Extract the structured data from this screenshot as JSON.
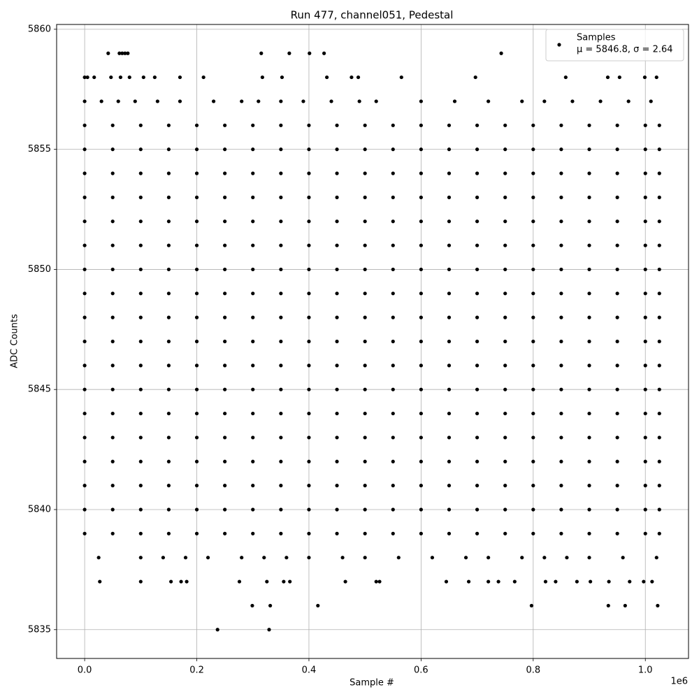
{
  "chart_data": {
    "type": "scatter",
    "title": "Run 477, channel051, Pedestal",
    "x_label": "Sample #",
    "y_label": "ADC Counts",
    "x_offset_label": "1e6",
    "xlim": [
      -50000,
      1077000
    ],
    "ylim": [
      5833.8,
      5860.2
    ],
    "xticks": [
      {
        "value": 0,
        "label": "0.0"
      },
      {
        "value": 200000,
        "label": "0.2"
      },
      {
        "value": 400000,
        "label": "0.4"
      },
      {
        "value": 600000,
        "label": "0.6"
      },
      {
        "value": 800000,
        "label": "0.8"
      },
      {
        "value": 1000000,
        "label": "1.0"
      }
    ],
    "yticks": [
      5835,
      5840,
      5845,
      5850,
      5855,
      5860
    ],
    "grid": true,
    "legend_position": "upper right",
    "series": [
      {
        "name": "Samples",
        "legend_note": "μ = 5846.8, σ = 2.64",
        "color": "#000000",
        "x": [
          0,
          50000,
          100000,
          150000,
          200000,
          250000,
          300000,
          350000,
          400000,
          450000,
          500000,
          550000,
          600000,
          650000,
          700000,
          750000,
          800000,
          850000,
          900000,
          950000,
          1000000,
          1025000,
          0,
          50000,
          100000,
          150000,
          200000,
          250000,
          300000,
          350000,
          400000,
          450000,
          500000,
          550000,
          600000,
          650000,
          700000,
          750000,
          800000,
          850000,
          900000,
          950000,
          1000000,
          1025000,
          0,
          50000,
          100000,
          150000,
          200000,
          250000,
          300000,
          350000,
          400000,
          450000,
          500000,
          550000,
          600000,
          650000,
          700000,
          750000,
          800000,
          850000,
          900000,
          950000,
          1000000,
          1025000,
          0,
          50000,
          100000,
          150000,
          200000,
          250000,
          300000,
          350000,
          400000,
          450000,
          500000,
          550000,
          600000,
          650000,
          700000,
          750000,
          800000,
          850000,
          900000,
          950000,
          1000000,
          1025000,
          0,
          50000,
          100000,
          150000,
          200000,
          250000,
          300000,
          350000,
          400000,
          450000,
          500000,
          550000,
          600000,
          650000,
          700000,
          750000,
          800000,
          850000,
          900000,
          950000,
          1000000,
          1025000,
          0,
          50000,
          100000,
          150000,
          200000,
          250000,
          300000,
          350000,
          400000,
          450000,
          500000,
          550000,
          600000,
          650000,
          700000,
          750000,
          800000,
          850000,
          900000,
          950000,
          1000000,
          1025000,
          0,
          50000,
          100000,
          150000,
          200000,
          250000,
          300000,
          350000,
          400000,
          450000,
          500000,
          550000,
          600000,
          650000,
          700000,
          750000,
          800000,
          850000,
          900000,
          950000,
          1000000,
          1025000,
          0,
          50000,
          100000,
          150000,
          200000,
          250000,
          300000,
          350000,
          400000,
          450000,
          500000,
          550000,
          600000,
          650000,
          700000,
          750000,
          800000,
          850000,
          900000,
          950000,
          1000000,
          1025000,
          0,
          50000,
          100000,
          150000,
          200000,
          250000,
          300000,
          350000,
          400000,
          450000,
          500000,
          550000,
          600000,
          650000,
          700000,
          750000,
          800000,
          850000,
          900000,
          950000,
          1000000,
          1025000,
          0,
          50000,
          100000,
          150000,
          200000,
          250000,
          300000,
          350000,
          400000,
          450000,
          500000,
          550000,
          600000,
          650000,
          700000,
          750000,
          800000,
          850000,
          900000,
          950000,
          1000000,
          1025000,
          0,
          50000,
          100000,
          150000,
          200000,
          250000,
          300000,
          350000,
          400000,
          450000,
          500000,
          550000,
          600000,
          650000,
          700000,
          750000,
          800000,
          850000,
          900000,
          950000,
          1000000,
          1025000,
          0,
          50000,
          100000,
          150000,
          200000,
          250000,
          300000,
          350000,
          400000,
          450000,
          500000,
          550000,
          600000,
          650000,
          700000,
          750000,
          800000,
          850000,
          900000,
          950000,
          1000000,
          1025000,
          0,
          50000,
          100000,
          150000,
          200000,
          250000,
          300000,
          350000,
          400000,
          450000,
          500000,
          550000,
          600000,
          650000,
          700000,
          750000,
          800000,
          850000,
          900000,
          950000,
          1000000,
          1025000,
          0,
          50000,
          100000,
          150000,
          200000,
          250000,
          300000,
          350000,
          400000,
          450000,
          500000,
          550000,
          600000,
          650000,
          700000,
          750000,
          800000,
          850000,
          900000,
          950000,
          1000000,
          1025000,
          0,
          50000,
          100000,
          150000,
          200000,
          250000,
          300000,
          350000,
          400000,
          450000,
          500000,
          550000,
          600000,
          650000,
          700000,
          750000,
          800000,
          850000,
          900000,
          950000,
          1000000,
          1025000,
          0,
          50000,
          100000,
          150000,
          200000,
          250000,
          300000,
          350000,
          400000,
          450000,
          500000,
          550000,
          600000,
          650000,
          700000,
          750000,
          800000,
          850000,
          900000,
          950000,
          1000000,
          1025000,
          0,
          50000,
          100000,
          150000,
          200000,
          250000,
          300000,
          350000,
          400000,
          450000,
          500000,
          550000,
          600000,
          650000,
          700000,
          750000,
          800000,
          850000,
          900000,
          950000,
          1000000,
          1025000,
          0,
          50000,
          100000,
          150000,
          200000,
          250000,
          300000,
          350000,
          400000,
          450000,
          500000,
          550000,
          600000,
          650000,
          700000,
          750000,
          800000,
          850000,
          900000,
          950000,
          1000000,
          1025000,
          42000,
          62000,
          67000,
          72000,
          77000,
          315000,
          365000,
          401000,
          427000,
          743000,
          0,
          5000,
          17000,
          47000,
          64000,
          80000,
          105000,
          125000,
          170000,
          212000,
          317000,
          352000,
          432000,
          476000,
          488000,
          565000,
          697000,
          858000,
          933000,
          954000,
          999000,
          1020000,
          0,
          30000,
          60000,
          90000,
          130000,
          170000,
          230000,
          280000,
          310000,
          350000,
          390000,
          440000,
          490000,
          520000,
          600000,
          660000,
          720000,
          780000,
          820000,
          870000,
          920000,
          970000,
          1010000,
          25000,
          100000,
          140000,
          180000,
          220000,
          280000,
          320000,
          360000,
          400000,
          460000,
          500000,
          560000,
          620000,
          680000,
          720000,
          780000,
          820000,
          860000,
          900000,
          960000,
          1020000,
          27000,
          100000,
          154000,
          172000,
          182000,
          276000,
          325000,
          355000,
          366000,
          465000,
          520000,
          526000,
          645000,
          685000,
          720000,
          738000,
          767000,
          822000,
          840000,
          878000,
          902000,
          935000,
          972000,
          997000,
          1012000,
          299000,
          331000,
          416000,
          797000,
          934000,
          964000,
          1022000,
          237000,
          329000
        ],
        "values": [
          5856,
          5856,
          5856,
          5856,
          5856,
          5856,
          5856,
          5856,
          5856,
          5856,
          5856,
          5856,
          5856,
          5856,
          5856,
          5856,
          5856,
          5856,
          5856,
          5856,
          5856,
          5856,
          5855,
          5855,
          5855,
          5855,
          5855,
          5855,
          5855,
          5855,
          5855,
          5855,
          5855,
          5855,
          5855,
          5855,
          5855,
          5855,
          5855,
          5855,
          5855,
          5855,
          5855,
          5855,
          5854,
          5854,
          5854,
          5854,
          5854,
          5854,
          5854,
          5854,
          5854,
          5854,
          5854,
          5854,
          5854,
          5854,
          5854,
          5854,
          5854,
          5854,
          5854,
          5854,
          5854,
          5854,
          5853,
          5853,
          5853,
          5853,
          5853,
          5853,
          5853,
          5853,
          5853,
          5853,
          5853,
          5853,
          5853,
          5853,
          5853,
          5853,
          5853,
          5853,
          5853,
          5853,
          5853,
          5853,
          5852,
          5852,
          5852,
          5852,
          5852,
          5852,
          5852,
          5852,
          5852,
          5852,
          5852,
          5852,
          5852,
          5852,
          5852,
          5852,
          5852,
          5852,
          5852,
          5852,
          5852,
          5852,
          5851,
          5851,
          5851,
          5851,
          5851,
          5851,
          5851,
          5851,
          5851,
          5851,
          5851,
          5851,
          5851,
          5851,
          5851,
          5851,
          5851,
          5851,
          5851,
          5851,
          5851,
          5851,
          5850,
          5850,
          5850,
          5850,
          5850,
          5850,
          5850,
          5850,
          5850,
          5850,
          5850,
          5850,
          5850,
          5850,
          5850,
          5850,
          5850,
          5850,
          5850,
          5850,
          5850,
          5850,
          5849,
          5849,
          5849,
          5849,
          5849,
          5849,
          5849,
          5849,
          5849,
          5849,
          5849,
          5849,
          5849,
          5849,
          5849,
          5849,
          5849,
          5849,
          5849,
          5849,
          5849,
          5849,
          5848,
          5848,
          5848,
          5848,
          5848,
          5848,
          5848,
          5848,
          5848,
          5848,
          5848,
          5848,
          5848,
          5848,
          5848,
          5848,
          5848,
          5848,
          5848,
          5848,
          5848,
          5848,
          5847,
          5847,
          5847,
          5847,
          5847,
          5847,
          5847,
          5847,
          5847,
          5847,
          5847,
          5847,
          5847,
          5847,
          5847,
          5847,
          5847,
          5847,
          5847,
          5847,
          5847,
          5847,
          5846,
          5846,
          5846,
          5846,
          5846,
          5846,
          5846,
          5846,
          5846,
          5846,
          5846,
          5846,
          5846,
          5846,
          5846,
          5846,
          5846,
          5846,
          5846,
          5846,
          5846,
          5846,
          5845,
          5845,
          5845,
          5845,
          5845,
          5845,
          5845,
          5845,
          5845,
          5845,
          5845,
          5845,
          5845,
          5845,
          5845,
          5845,
          5845,
          5845,
          5845,
          5845,
          5845,
          5845,
          5844,
          5844,
          5844,
          5844,
          5844,
          5844,
          5844,
          5844,
          5844,
          5844,
          5844,
          5844,
          5844,
          5844,
          5844,
          5844,
          5844,
          5844,
          5844,
          5844,
          5844,
          5844,
          5843,
          5843,
          5843,
          5843,
          5843,
          5843,
          5843,
          5843,
          5843,
          5843,
          5843,
          5843,
          5843,
          5843,
          5843,
          5843,
          5843,
          5843,
          5843,
          5843,
          5843,
          5843,
          5842,
          5842,
          5842,
          5842,
          5842,
          5842,
          5842,
          5842,
          5842,
          5842,
          5842,
          5842,
          5842,
          5842,
          5842,
          5842,
          5842,
          5842,
          5842,
          5842,
          5842,
          5842,
          5841,
          5841,
          5841,
          5841,
          5841,
          5841,
          5841,
          5841,
          5841,
          5841,
          5841,
          5841,
          5841,
          5841,
          5841,
          5841,
          5841,
          5841,
          5841,
          5841,
          5841,
          5841,
          5840,
          5840,
          5840,
          5840,
          5840,
          5840,
          5840,
          5840,
          5840,
          5840,
          5840,
          5840,
          5840,
          5840,
          5840,
          5840,
          5840,
          5840,
          5840,
          5840,
          5840,
          5840,
          5839,
          5839,
          5839,
          5839,
          5839,
          5839,
          5839,
          5839,
          5839,
          5839,
          5839,
          5839,
          5839,
          5839,
          5839,
          5839,
          5839,
          5839,
          5839,
          5839,
          5839,
          5839,
          5859,
          5859,
          5859,
          5859,
          5859,
          5859,
          5859,
          5859,
          5859,
          5859,
          5858,
          5858,
          5858,
          5858,
          5858,
          5858,
          5858,
          5858,
          5858,
          5858,
          5858,
          5858,
          5858,
          5858,
          5858,
          5858,
          5858,
          5858,
          5858,
          5858,
          5858,
          5858,
          5857,
          5857,
          5857,
          5857,
          5857,
          5857,
          5857,
          5857,
          5857,
          5857,
          5857,
          5857,
          5857,
          5857,
          5857,
          5857,
          5857,
          5857,
          5857,
          5857,
          5857,
          5857,
          5857,
          5838,
          5838,
          5838,
          5838,
          5838,
          5838,
          5838,
          5838,
          5838,
          5838,
          5838,
          5838,
          5838,
          5838,
          5838,
          5838,
          5838,
          5838,
          5838,
          5838,
          5838,
          5837,
          5837,
          5837,
          5837,
          5837,
          5837,
          5837,
          5837,
          5837,
          5837,
          5837,
          5837,
          5837,
          5837,
          5837,
          5837,
          5837,
          5837,
          5837,
          5837,
          5837,
          5837,
          5837,
          5837,
          5837,
          5836,
          5836,
          5836,
          5836,
          5836,
          5836,
          5836,
          5835,
          5835
        ]
      }
    ]
  }
}
